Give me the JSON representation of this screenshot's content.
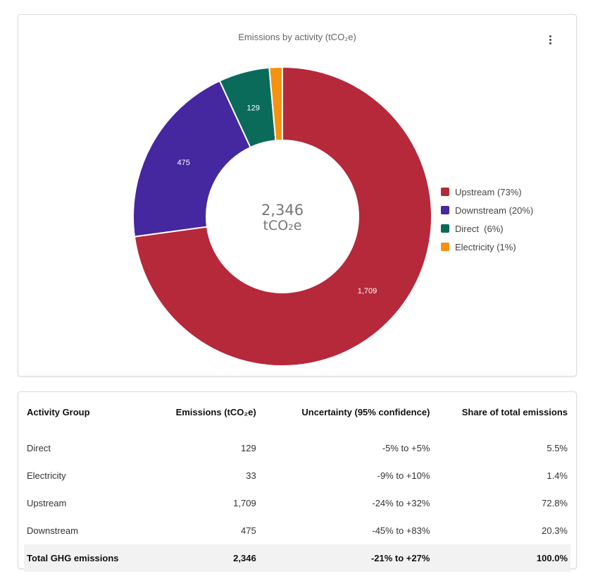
{
  "chart_data": {
    "type": "pie",
    "title": "Emissions by activity (tCO₂e)",
    "categories": [
      "Upstream",
      "Downstream",
      "Direct",
      "Electricity"
    ],
    "values": [
      1709,
      475,
      129,
      33
    ],
    "slice_labels": [
      "1,709",
      "475",
      "129",
      ""
    ],
    "legend": [
      "Upstream (73%)",
      "Downstream (20%)",
      "Direct  (6%)",
      "Electricity (1%)"
    ],
    "colors": [
      "#b5293a",
      "#4527a0",
      "#0b6b5b",
      "#f5920f"
    ],
    "center_total": "2,346",
    "center_unit": "tCO₂e",
    "hole": "donut",
    "legend_position": "right"
  },
  "menu_icon": "more-vertical-icon",
  "table": {
    "headers": [
      "Activity Group",
      "Emissions (tCO₂e)",
      "Uncertainty (95% confidence)",
      "Share of total emissions"
    ],
    "rows": [
      [
        "Direct",
        "129",
        "-5% to +5%",
        "5.5%"
      ],
      [
        "Electricity",
        "33",
        "-9% to +10%",
        "1.4%"
      ],
      [
        "Upstream",
        "1,709",
        "-24% to +32%",
        "72.8%"
      ],
      [
        "Downstream",
        "475",
        "-45% to +83%",
        "20.3%"
      ]
    ],
    "total": [
      "Total GHG emissions",
      "2,346",
      "-21% to +27%",
      "100.0%"
    ]
  }
}
